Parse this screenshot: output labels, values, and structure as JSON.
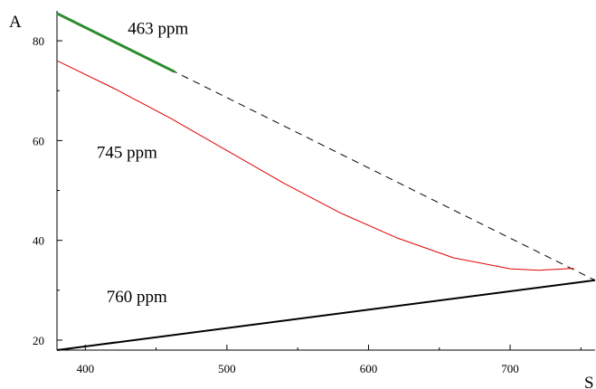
{
  "chart_data": {
    "type": "line",
    "title": "",
    "xlabel": "S",
    "ylabel": "A",
    "xlim": [
      380,
      760
    ],
    "ylim": [
      18,
      86
    ],
    "x_ticks": [
      400,
      500,
      600,
      700
    ],
    "y_ticks": [
      20,
      40,
      60,
      80
    ],
    "grid": false,
    "series": [
      {
        "color": "#000000",
        "dash": "dashed",
        "width": 1,
        "points": [
          [
            380,
            85.5
          ],
          [
            760,
            32
          ]
        ]
      },
      {
        "color": "#2e8b2e",
        "dash": "solid",
        "width": 3,
        "points": [
          [
            380,
            85.5
          ],
          [
            463,
            73.8
          ]
        ]
      },
      {
        "color": "#e00000",
        "dash": "solid",
        "width": 1,
        "points": [
          [
            380,
            76
          ],
          [
            420,
            70.5
          ],
          [
            460,
            64.5
          ],
          [
            500,
            58
          ],
          [
            540,
            51.5
          ],
          [
            580,
            45.5
          ],
          [
            620,
            40.5
          ],
          [
            660,
            36.5
          ],
          [
            700,
            34.3
          ],
          [
            720,
            34
          ],
          [
            745,
            34.4
          ]
        ]
      },
      {
        "color": "#000000",
        "dash": "solid",
        "width": 2,
        "points": [
          [
            380,
            18
          ],
          [
            760,
            32
          ]
        ]
      }
    ],
    "annotations": [
      {
        "text": "463 ppm",
        "x": 430,
        "y": 81.4
      },
      {
        "text": "745 ppm",
        "x": 408,
        "y": 56.5
      },
      {
        "text": "760 ppm",
        "x": 415,
        "y": 27.6
      }
    ]
  }
}
